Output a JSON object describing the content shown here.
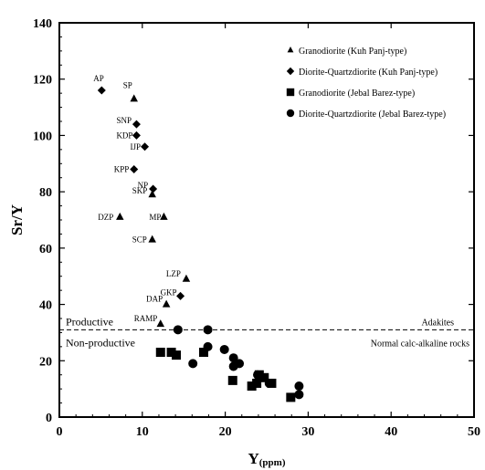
{
  "chart_data": {
    "type": "scatter",
    "xlabel": "Y",
    "xlabel_unit": "(ppm)",
    "ylabel": "Sr/Y",
    "xlim": [
      0,
      50
    ],
    "ylim": [
      0,
      140
    ],
    "x_ticks": [
      "0",
      "10",
      "20",
      "30",
      "40",
      "50"
    ],
    "y_ticks": [
      "0",
      "20",
      "40",
      "60",
      "80",
      "100",
      "120",
      "140"
    ],
    "grid": false,
    "legend_position": "top-right",
    "threshold": {
      "y": 31,
      "labels": [
        "Productive",
        "Non-productive"
      ],
      "right_labels": [
        "Adakites",
        "Normal calc-alkaline rocks"
      ]
    },
    "series": [
      {
        "name": "Granodiorite (Kuh Panj-type)",
        "marker": "triangle",
        "points": [
          {
            "x": 9.0,
            "y": 113,
            "label": "SP"
          },
          {
            "x": 11.2,
            "y": 79,
            "label": "SKP"
          },
          {
            "x": 12.6,
            "y": 71,
            "label": "MP"
          },
          {
            "x": 7.3,
            "y": 71,
            "label": "DZP"
          },
          {
            "x": 11.2,
            "y": 63,
            "label": "SCP"
          },
          {
            "x": 15.3,
            "y": 49,
            "label": "LZP"
          },
          {
            "x": 12.9,
            "y": 40,
            "label": "DAP"
          },
          {
            "x": 12.2,
            "y": 33,
            "label": "RAMP"
          }
        ]
      },
      {
        "name": "Diorite-Quartzdiorite (Kuh Panj-type)",
        "marker": "diamond",
        "points": [
          {
            "x": 5.1,
            "y": 116,
            "label": "AP"
          },
          {
            "x": 9.3,
            "y": 104,
            "label": "SNP"
          },
          {
            "x": 9.3,
            "y": 100,
            "label": "KDP"
          },
          {
            "x": 10.3,
            "y": 96,
            "label": "IJP"
          },
          {
            "x": 9.0,
            "y": 88,
            "label": "KPP"
          },
          {
            "x": 11.3,
            "y": 81,
            "label": "NP"
          },
          {
            "x": 14.6,
            "y": 43,
            "label": "GKP"
          }
        ]
      },
      {
        "name": "Granodiorite (Jebal Barez-type)",
        "marker": "square",
        "points": [
          {
            "x": 12.2,
            "y": 23,
            "label": ""
          },
          {
            "x": 13.5,
            "y": 23,
            "label": ""
          },
          {
            "x": 14.1,
            "y": 22,
            "label": ""
          },
          {
            "x": 17.4,
            "y": 23,
            "label": ""
          },
          {
            "x": 20.9,
            "y": 13,
            "label": ""
          },
          {
            "x": 23.2,
            "y": 11,
            "label": ""
          },
          {
            "x": 23.8,
            "y": 12,
            "label": ""
          },
          {
            "x": 24.1,
            "y": 15,
            "label": ""
          },
          {
            "x": 24.7,
            "y": 14,
            "label": ""
          },
          {
            "x": 25.6,
            "y": 12,
            "label": ""
          },
          {
            "x": 27.9,
            "y": 7,
            "label": ""
          }
        ]
      },
      {
        "name": "Diorite-Quartzdiorite (Jebal Barez-type)",
        "marker": "circle",
        "points": [
          {
            "x": 14.3,
            "y": 31,
            "label": ""
          },
          {
            "x": 17.9,
            "y": 31,
            "label": ""
          },
          {
            "x": 17.9,
            "y": 25,
            "label": ""
          },
          {
            "x": 16.1,
            "y": 19,
            "label": ""
          },
          {
            "x": 19.9,
            "y": 24,
            "label": ""
          },
          {
            "x": 21.0,
            "y": 21,
            "label": ""
          },
          {
            "x": 21.0,
            "y": 18,
            "label": ""
          },
          {
            "x": 21.7,
            "y": 19,
            "label": ""
          },
          {
            "x": 23.9,
            "y": 15,
            "label": ""
          },
          {
            "x": 25.3,
            "y": 12,
            "label": ""
          },
          {
            "x": 28.9,
            "y": 11,
            "label": ""
          },
          {
            "x": 28.9,
            "y": 8,
            "label": ""
          }
        ]
      }
    ]
  }
}
